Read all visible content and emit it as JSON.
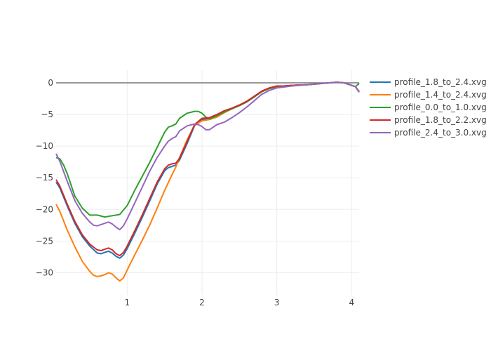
{
  "chart_data": {
    "type": "line",
    "title": "",
    "xlabel": "",
    "ylabel": "",
    "xlim": [
      0.05,
      4.1
    ],
    "ylim": [
      -33.5,
      2
    ],
    "x_ticks": [
      1,
      2,
      3,
      4
    ],
    "y_ticks": [
      0,
      -5,
      -10,
      -15,
      -20,
      -25,
      -30
    ],
    "grid": true,
    "legend_position": "right",
    "zero_line": true,
    "series": [
      {
        "name": "profile_1.8_to_2.4.xvg",
        "color": "#1f77b4",
        "points": [
          [
            0.05,
            -15.7
          ],
          [
            0.1,
            -16.6
          ],
          [
            0.2,
            -19.5
          ],
          [
            0.3,
            -22.2
          ],
          [
            0.4,
            -24.3
          ],
          [
            0.5,
            -25.8
          ],
          [
            0.6,
            -26.9
          ],
          [
            0.65,
            -27.0
          ],
          [
            0.7,
            -26.8
          ],
          [
            0.75,
            -26.6
          ],
          [
            0.8,
            -26.9
          ],
          [
            0.85,
            -27.4
          ],
          [
            0.9,
            -27.7
          ],
          [
            0.95,
            -27.2
          ],
          [
            1.0,
            -26.2
          ],
          [
            1.1,
            -23.8
          ],
          [
            1.2,
            -21.3
          ],
          [
            1.3,
            -18.7
          ],
          [
            1.4,
            -16.0
          ],
          [
            1.5,
            -13.9
          ],
          [
            1.55,
            -13.4
          ],
          [
            1.6,
            -13.2
          ],
          [
            1.65,
            -13.0
          ],
          [
            1.7,
            -12.2
          ],
          [
            1.8,
            -9.6
          ],
          [
            1.9,
            -6.8
          ],
          [
            2.0,
            -5.8
          ],
          [
            2.1,
            -5.6
          ],
          [
            2.2,
            -5.1
          ],
          [
            2.3,
            -4.5
          ],
          [
            2.4,
            -4.1
          ],
          [
            2.5,
            -3.6
          ],
          [
            2.6,
            -3.0
          ],
          [
            2.7,
            -2.2
          ],
          [
            2.8,
            -1.4
          ],
          [
            2.9,
            -0.9
          ],
          [
            3.0,
            -0.6
          ],
          [
            3.1,
            -0.5
          ],
          [
            3.2,
            -0.4
          ],
          [
            3.4,
            -0.3
          ],
          [
            3.6,
            -0.1
          ],
          [
            3.8,
            0.1
          ],
          [
            3.9,
            0.0
          ],
          [
            4.0,
            -0.4
          ],
          [
            4.05,
            -0.6
          ],
          [
            4.1,
            -1.4
          ]
        ]
      },
      {
        "name": "profile_1.4_to_2.4.xvg",
        "color": "#ff7f0e",
        "points": [
          [
            0.05,
            -19.2
          ],
          [
            0.1,
            -20.3
          ],
          [
            0.2,
            -23.3
          ],
          [
            0.3,
            -25.9
          ],
          [
            0.4,
            -28.2
          ],
          [
            0.5,
            -29.8
          ],
          [
            0.55,
            -30.4
          ],
          [
            0.6,
            -30.6
          ],
          [
            0.65,
            -30.5
          ],
          [
            0.7,
            -30.3
          ],
          [
            0.75,
            -30.0
          ],
          [
            0.8,
            -30.2
          ],
          [
            0.85,
            -30.8
          ],
          [
            0.9,
            -31.3
          ],
          [
            0.95,
            -30.8
          ],
          [
            1.0,
            -29.6
          ],
          [
            1.1,
            -27.2
          ],
          [
            1.2,
            -24.9
          ],
          [
            1.3,
            -22.5
          ],
          [
            1.4,
            -19.8
          ],
          [
            1.5,
            -17.0
          ],
          [
            1.6,
            -14.5
          ],
          [
            1.65,
            -13.3
          ],
          [
            1.7,
            -11.8
          ],
          [
            1.8,
            -9.0
          ],
          [
            1.9,
            -6.7
          ],
          [
            2.0,
            -6.0
          ],
          [
            2.1,
            -5.8
          ],
          [
            2.2,
            -5.4
          ],
          [
            2.3,
            -4.7
          ],
          [
            2.4,
            -4.1
          ],
          [
            2.5,
            -3.5
          ],
          [
            2.6,
            -2.9
          ],
          [
            2.7,
            -2.1
          ],
          [
            2.8,
            -1.4
          ],
          [
            2.9,
            -0.9
          ],
          [
            3.0,
            -0.6
          ],
          [
            3.2,
            -0.4
          ],
          [
            3.4,
            -0.3
          ],
          [
            3.6,
            -0.1
          ],
          [
            3.8,
            0.1
          ],
          [
            3.9,
            0.0
          ],
          [
            4.0,
            -0.4
          ],
          [
            4.05,
            -0.6
          ],
          [
            4.1,
            -1.4
          ]
        ]
      },
      {
        "name": "profile_0.0_to_1.0.xvg",
        "color": "#2ca02c",
        "points": [
          [
            0.05,
            -11.8
          ],
          [
            0.1,
            -12.0
          ],
          [
            0.15,
            -13.0
          ],
          [
            0.2,
            -14.4
          ],
          [
            0.3,
            -17.9
          ],
          [
            0.4,
            -19.8
          ],
          [
            0.5,
            -20.9
          ],
          [
            0.6,
            -20.9
          ],
          [
            0.7,
            -21.2
          ],
          [
            0.8,
            -21.0
          ],
          [
            0.9,
            -20.8
          ],
          [
            1.0,
            -19.4
          ],
          [
            1.1,
            -17.0
          ],
          [
            1.2,
            -14.8
          ],
          [
            1.3,
            -12.6
          ],
          [
            1.4,
            -10.2
          ],
          [
            1.5,
            -7.8
          ],
          [
            1.55,
            -7.0
          ],
          [
            1.6,
            -6.8
          ],
          [
            1.65,
            -6.5
          ],
          [
            1.7,
            -5.6
          ],
          [
            1.8,
            -4.8
          ],
          [
            1.9,
            -4.5
          ],
          [
            1.95,
            -4.5
          ],
          [
            2.0,
            -4.8
          ],
          [
            2.05,
            -5.4
          ],
          [
            2.1,
            -5.7
          ],
          [
            2.2,
            -5.2
          ],
          [
            2.3,
            -4.6
          ],
          [
            2.4,
            -4.1
          ],
          [
            2.5,
            -3.6
          ],
          [
            2.6,
            -3.0
          ],
          [
            2.7,
            -2.2
          ],
          [
            2.8,
            -1.4
          ],
          [
            2.9,
            -0.9
          ],
          [
            3.0,
            -0.6
          ],
          [
            3.2,
            -0.4
          ],
          [
            3.4,
            -0.3
          ],
          [
            3.6,
            -0.1
          ],
          [
            3.8,
            0.1
          ],
          [
            3.9,
            0.0
          ],
          [
            4.0,
            -0.4
          ],
          [
            4.05,
            -0.6
          ],
          [
            4.1,
            -0.1
          ]
        ]
      },
      {
        "name": "profile_1.8_to_2.2.xvg",
        "color": "#d62728",
        "points": [
          [
            0.05,
            -15.3
          ],
          [
            0.1,
            -16.3
          ],
          [
            0.2,
            -19.2
          ],
          [
            0.3,
            -21.9
          ],
          [
            0.4,
            -24.0
          ],
          [
            0.5,
            -25.5
          ],
          [
            0.6,
            -26.4
          ],
          [
            0.65,
            -26.5
          ],
          [
            0.7,
            -26.3
          ],
          [
            0.75,
            -26.1
          ],
          [
            0.8,
            -26.4
          ],
          [
            0.85,
            -27.0
          ],
          [
            0.9,
            -27.3
          ],
          [
            0.95,
            -26.8
          ],
          [
            1.0,
            -25.8
          ],
          [
            1.1,
            -23.4
          ],
          [
            1.2,
            -20.9
          ],
          [
            1.3,
            -18.3
          ],
          [
            1.4,
            -15.7
          ],
          [
            1.5,
            -13.6
          ],
          [
            1.55,
            -13.0
          ],
          [
            1.6,
            -12.8
          ],
          [
            1.65,
            -12.7
          ],
          [
            1.7,
            -11.9
          ],
          [
            1.8,
            -9.3
          ],
          [
            1.9,
            -6.6
          ],
          [
            2.0,
            -5.6
          ],
          [
            2.1,
            -5.5
          ],
          [
            2.2,
            -5.0
          ],
          [
            2.3,
            -4.4
          ],
          [
            2.4,
            -4.0
          ],
          [
            2.5,
            -3.5
          ],
          [
            2.6,
            -2.9
          ],
          [
            2.7,
            -2.1
          ],
          [
            2.8,
            -1.3
          ],
          [
            2.9,
            -0.8
          ],
          [
            3.0,
            -0.5
          ],
          [
            3.1,
            -0.5
          ],
          [
            3.2,
            -0.4
          ],
          [
            3.4,
            -0.3
          ],
          [
            3.6,
            -0.1
          ],
          [
            3.8,
            0.1
          ],
          [
            3.9,
            0.0
          ],
          [
            4.0,
            -0.4
          ],
          [
            4.05,
            -0.6
          ],
          [
            4.1,
            -1.4
          ]
        ]
      },
      {
        "name": "profile_2.4_to_3.0.xvg",
        "color": "#9467bd",
        "points": [
          [
            0.05,
            -11.2
          ],
          [
            0.1,
            -12.4
          ],
          [
            0.2,
            -15.6
          ],
          [
            0.3,
            -18.6
          ],
          [
            0.4,
            -20.6
          ],
          [
            0.5,
            -22.0
          ],
          [
            0.55,
            -22.5
          ],
          [
            0.6,
            -22.6
          ],
          [
            0.65,
            -22.4
          ],
          [
            0.7,
            -22.2
          ],
          [
            0.75,
            -22.0
          ],
          [
            0.8,
            -22.3
          ],
          [
            0.85,
            -22.8
          ],
          [
            0.9,
            -23.2
          ],
          [
            0.95,
            -22.6
          ],
          [
            1.0,
            -21.5
          ],
          [
            1.1,
            -19.0
          ],
          [
            1.2,
            -16.5
          ],
          [
            1.3,
            -14.0
          ],
          [
            1.4,
            -11.8
          ],
          [
            1.5,
            -10.0
          ],
          [
            1.55,
            -9.2
          ],
          [
            1.6,
            -8.8
          ],
          [
            1.65,
            -8.5
          ],
          [
            1.7,
            -7.6
          ],
          [
            1.8,
            -6.8
          ],
          [
            1.9,
            -6.5
          ],
          [
            1.95,
            -6.6
          ],
          [
            2.0,
            -6.9
          ],
          [
            2.05,
            -7.4
          ],
          [
            2.1,
            -7.4
          ],
          [
            2.2,
            -6.6
          ],
          [
            2.3,
            -6.2
          ],
          [
            2.4,
            -5.5
          ],
          [
            2.5,
            -4.7
          ],
          [
            2.6,
            -3.8
          ],
          [
            2.7,
            -2.8
          ],
          [
            2.8,
            -1.8
          ],
          [
            2.9,
            -1.2
          ],
          [
            3.0,
            -0.8
          ],
          [
            3.2,
            -0.5
          ],
          [
            3.4,
            -0.3
          ],
          [
            3.6,
            -0.1
          ],
          [
            3.8,
            0.1
          ],
          [
            3.9,
            0.0
          ],
          [
            4.0,
            -0.4
          ],
          [
            4.05,
            -0.6
          ],
          [
            4.1,
            -1.5
          ]
        ]
      }
    ]
  }
}
